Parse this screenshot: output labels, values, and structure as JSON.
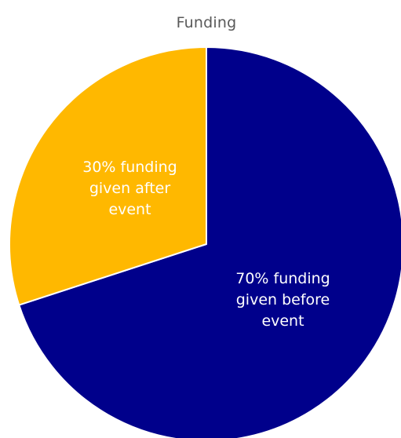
{
  "chart_data": {
    "type": "pie",
    "title": "Funding",
    "slices": [
      {
        "label_lines": [
          "70% funding",
          "given before",
          "event"
        ],
        "value": 70,
        "color": "#00008B"
      },
      {
        "label_lines": [
          "30% funding",
          "given after",
          "event"
        ],
        "value": 30,
        "color": "#FFB800"
      }
    ],
    "start_angle_deg": 0,
    "direction": "clockwise",
    "slice_border_color": "#ffffff",
    "legend": "none"
  }
}
